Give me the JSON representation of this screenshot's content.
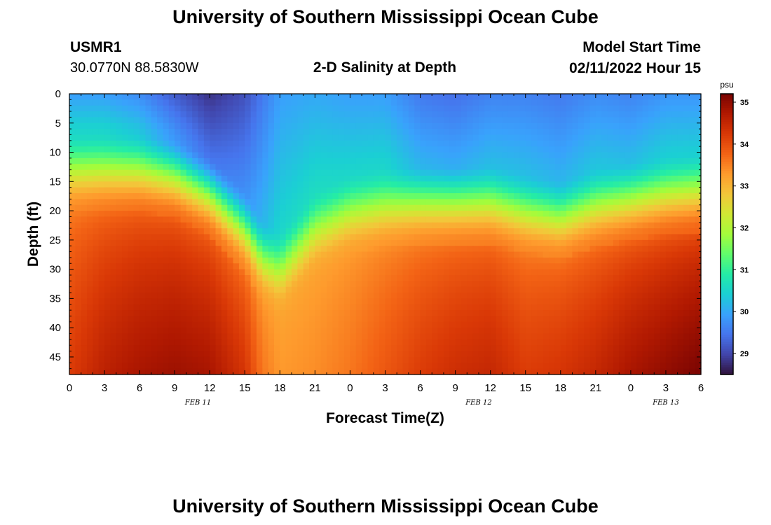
{
  "header": {
    "title": "University of Southern Mississippi Ocean Cube",
    "station_id": "USMR1",
    "coordinates": "30.0770N  88.5830W",
    "plot_title": "2-D Salinity at Depth",
    "model_start_label": "Model Start Time",
    "model_start_value": "02/11/2022 Hour 15"
  },
  "footer": {
    "title": "University of Southern Mississippi Ocean Cube"
  },
  "chart_data": {
    "type": "heatmap",
    "title": "2-D Salinity at Depth",
    "xlabel": "Forecast Time(Z)",
    "ylabel": "Depth (ft)",
    "x_range_hours": [
      0,
      54
    ],
    "x_ticks_hours": [
      0,
      3,
      6,
      9,
      12,
      15,
      18,
      21,
      24,
      27,
      30,
      33,
      36,
      39,
      42,
      45,
      48,
      51,
      54
    ],
    "x_tick_labels": [
      "0",
      "3",
      "6",
      "9",
      "12",
      "15",
      "18",
      "21",
      "0",
      "3",
      "6",
      "9",
      "12",
      "15",
      "18",
      "21",
      "0",
      "3",
      "6"
    ],
    "date_labels": [
      {
        "label": "FEB 11",
        "hour": 11
      },
      {
        "label": "FEB 12",
        "hour": 35
      },
      {
        "label": "FEB 13",
        "hour": 51
      }
    ],
    "y_range_ft": [
      0,
      48
    ],
    "y_ticks": [
      0,
      5,
      10,
      15,
      20,
      25,
      30,
      35,
      40,
      45
    ],
    "colorbar": {
      "unit": "psu",
      "range": [
        28.5,
        35.2
      ],
      "ticks": [
        29,
        30,
        31,
        32,
        33,
        34,
        35
      ],
      "colors": [
        "#30123b",
        "#4145ab",
        "#4675ed",
        "#39a2fc",
        "#1bcfd4",
        "#24eca6",
        "#61fc6c",
        "#a4fc3b",
        "#d1e834",
        "#f3c63a",
        "#fe9b2d",
        "#f36315",
        "#d93806",
        "#b11901",
        "#7a0402"
      ]
    },
    "value_model": {
      "time_hours": [
        0,
        3,
        6,
        9,
        12,
        15,
        16.5,
        18,
        21,
        24,
        27,
        30,
        33,
        36,
        39,
        42,
        45,
        48,
        51,
        54
      ],
      "halocline_depth_ft": [
        13,
        13,
        13,
        14,
        17,
        23,
        28,
        30,
        23,
        20,
        19,
        18.5,
        18.5,
        18.5,
        20,
        21,
        19,
        18,
        17,
        16.5
      ],
      "surface_salinity": [
        29.9,
        29.9,
        29.7,
        29.2,
        28.8,
        29.1,
        29.5,
        29.9,
        30.0,
        29.9,
        29.9,
        29.5,
        29.4,
        29.6,
        29.6,
        29.5,
        29.7,
        29.6,
        29.8,
        29.8
      ],
      "deep_salinity": [
        34.2,
        34.6,
        34.8,
        34.9,
        34.8,
        34.3,
        33.6,
        33.3,
        33.4,
        33.6,
        33.9,
        34.2,
        34.4,
        34.5,
        34.2,
        34.3,
        34.5,
        34.8,
        35.0,
        35.2
      ],
      "bottom_depth_ft": 48
    }
  }
}
